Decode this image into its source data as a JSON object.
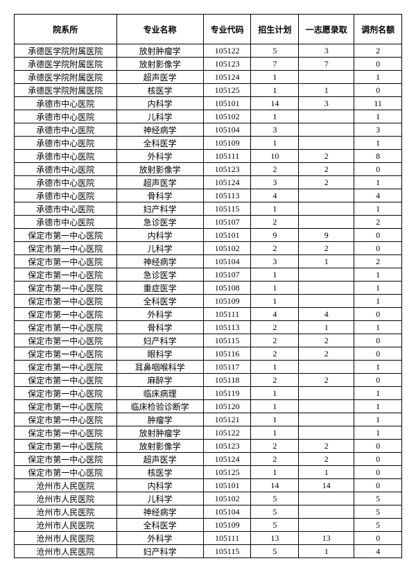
{
  "table": {
    "headers": [
      "院系所",
      "专业名称",
      "专业代码",
      "招生计划",
      "一志愿录取",
      "调剂名额"
    ],
    "rows": [
      [
        "承德医学院附属医院",
        "放射肿瘤学",
        "105122",
        "5",
        "3",
        "2"
      ],
      [
        "承德医学院附属医院",
        "放射影像学",
        "105123",
        "7",
        "7",
        "0"
      ],
      [
        "承德医学院附属医院",
        "超声医学",
        "105124",
        "1",
        "",
        "1"
      ],
      [
        "承德医学院附属医院",
        "核医学",
        "105125",
        "1",
        "1",
        "0"
      ],
      [
        "承德市中心医院",
        "内科学",
        "105101",
        "14",
        "3",
        "11"
      ],
      [
        "承德市中心医院",
        "儿科学",
        "105102",
        "1",
        "",
        "1"
      ],
      [
        "承德市中心医院",
        "神经病学",
        "105104",
        "3",
        "",
        "3"
      ],
      [
        "承德市中心医院",
        "全科医学",
        "105109",
        "1",
        "",
        "1"
      ],
      [
        "承德市中心医院",
        "外科学",
        "105111",
        "10",
        "2",
        "8"
      ],
      [
        "承德市中心医院",
        "放射影像学",
        "105123",
        "2",
        "2",
        "0"
      ],
      [
        "承德市中心医院",
        "超声医学",
        "105124",
        "3",
        "2",
        "1"
      ],
      [
        "承德市中心医院",
        "骨科学",
        "105113",
        "4",
        "",
        "4"
      ],
      [
        "承德市中心医院",
        "妇产科学",
        "105115",
        "1",
        "",
        "1"
      ],
      [
        "承德市中心医院",
        "急诊医学",
        "105107",
        "2",
        "",
        "2"
      ],
      [
        "保定市第一中心医院",
        "内科学",
        "105101",
        "9",
        "9",
        "0"
      ],
      [
        "保定市第一中心医院",
        "儿科学",
        "105102",
        "2",
        "2",
        "0"
      ],
      [
        "保定市第一中心医院",
        "神经病学",
        "105104",
        "3",
        "1",
        "2"
      ],
      [
        "保定市第一中心医院",
        "急诊医学",
        "105107",
        "1",
        "",
        "1"
      ],
      [
        "保定市第一中心医院",
        "重症医学",
        "105108",
        "1",
        "",
        "1"
      ],
      [
        "保定市第一中心医院",
        "全科医学",
        "105109",
        "1",
        "",
        "1"
      ],
      [
        "保定市第一中心医院",
        "外科学",
        "105111",
        "4",
        "4",
        "0"
      ],
      [
        "保定市第一中心医院",
        "骨科学",
        "105113",
        "2",
        "1",
        "1"
      ],
      [
        "保定市第一中心医院",
        "妇产科学",
        "105115",
        "2",
        "2",
        "0"
      ],
      [
        "保定市第一中心医院",
        "眼科学",
        "105116",
        "2",
        "2",
        "0"
      ],
      [
        "保定市第一中心医院",
        "耳鼻咽喉科学",
        "105117",
        "1",
        "",
        "1"
      ],
      [
        "保定市第一中心医院",
        "麻醉学",
        "105118",
        "2",
        "2",
        "0"
      ],
      [
        "保定市第一中心医院",
        "临床病理",
        "105119",
        "1",
        "",
        "1"
      ],
      [
        "保定市第一中心医院",
        "临床检验诊断学",
        "105120",
        "1",
        "",
        "1"
      ],
      [
        "保定市第一中心医院",
        "肿瘤学",
        "105121",
        "1",
        "",
        "1"
      ],
      [
        "保定市第一中心医院",
        "放射肿瘤学",
        "105122",
        "1",
        "",
        "1"
      ],
      [
        "保定市第一中心医院",
        "放射影像学",
        "105123",
        "2",
        "2",
        "0"
      ],
      [
        "保定市第一中心医院",
        "超声医学",
        "105124",
        "2",
        "2",
        "0"
      ],
      [
        "保定市第一中心医院",
        "核医学",
        "105125",
        "1",
        "1",
        "0"
      ],
      [
        "沧州市人民医院",
        "内科学",
        "105101",
        "14",
        "14",
        "0"
      ],
      [
        "沧州市人民医院",
        "儿科学",
        "105102",
        "5",
        "",
        "5"
      ],
      [
        "沧州市人民医院",
        "神经病学",
        "105104",
        "5",
        "",
        "5"
      ],
      [
        "沧州市人民医院",
        "全科医学",
        "105109",
        "5",
        "",
        "5"
      ],
      [
        "沧州市人民医院",
        "外科学",
        "105111",
        "13",
        "13",
        "0"
      ],
      [
        "沧州市人民医院",
        "妇产科学",
        "105115",
        "5",
        "1",
        "4"
      ]
    ]
  }
}
